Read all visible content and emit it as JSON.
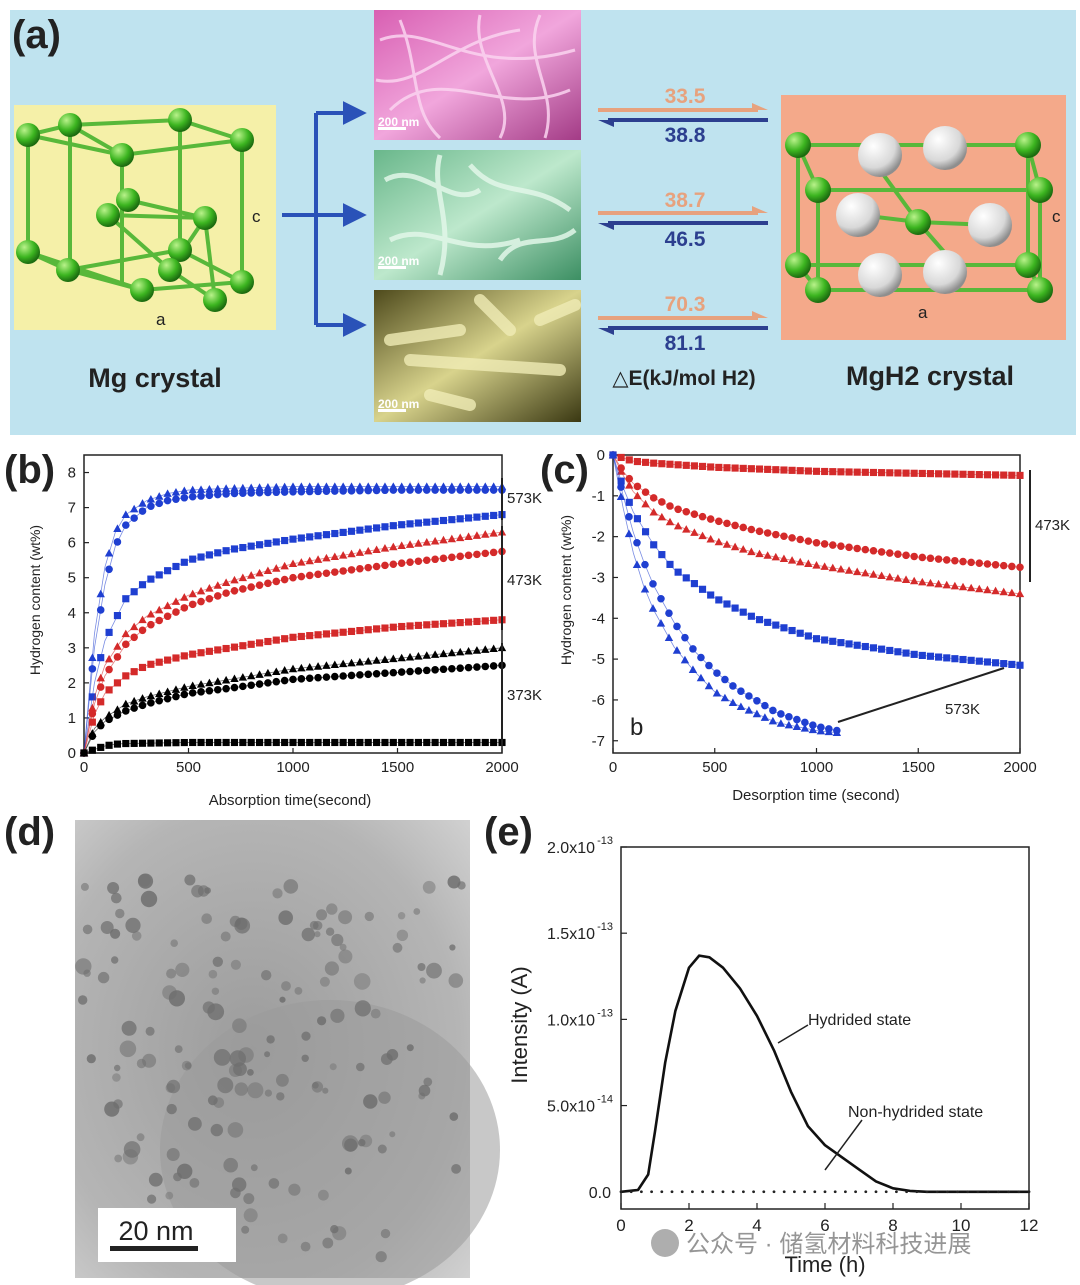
{
  "panel_a": {
    "label": "(a)",
    "mg_caption": "Mg crystal",
    "mgh2_caption": "MgH2 crystal",
    "axis_c": "c",
    "axis_a": "a",
    "scale_bar": "200 nm",
    "energy_unit_label": "△E(kJ/mol H2)",
    "energy_pairs": [
      {
        "forward": "33.5",
        "backward": "38.8"
      },
      {
        "forward": "38.7",
        "backward": "46.5"
      },
      {
        "forward": "70.3",
        "backward": "81.1"
      }
    ],
    "colors": {
      "background": "#bfe3ef",
      "mg_box": "#f5f0a8",
      "mgh2_box": "#f4a98a",
      "forward": "#e7a27e",
      "backward": "#2c3f8f",
      "arrow": "#2a52b8"
    }
  },
  "panel_d": {
    "label": "(d)",
    "scale_bar": "20 nm"
  },
  "watermark": "公众号 · 储氢材料科技进展",
  "chart_data": [
    {
      "id": "b",
      "label": "(b)",
      "type": "scatter",
      "xlabel": "Absorption time(second)",
      "ylabel": "Hydrogen content (wt%)",
      "xlim": [
        0,
        2000
      ],
      "ylim": [
        0,
        8.5
      ],
      "xticks": [
        0,
        500,
        1000,
        1500,
        2000
      ],
      "yticks": [
        0,
        1,
        2,
        3,
        4,
        5,
        6,
        7,
        8
      ],
      "temperature_labels": [
        "573K",
        "473K",
        "373K"
      ],
      "series": [
        {
          "color": "#1f3fd1",
          "marker": "triangle",
          "x": [
            0,
            50,
            100,
            150,
            200,
            300,
            400,
            500,
            700,
            1000,
            1500,
            2000
          ],
          "y": [
            0,
            3.4,
            5.3,
            6.3,
            6.8,
            7.2,
            7.4,
            7.5,
            7.55,
            7.6,
            7.6,
            7.6
          ]
        },
        {
          "color": "#1f3fd1",
          "marker": "circle",
          "x": [
            0,
            50,
            100,
            150,
            200,
            300,
            400,
            500,
            700,
            1000,
            1500,
            2000
          ],
          "y": [
            0,
            3.0,
            4.8,
            5.9,
            6.5,
            7.0,
            7.2,
            7.3,
            7.4,
            7.45,
            7.5,
            7.5
          ]
        },
        {
          "color": "#1f3fd1",
          "marker": "square",
          "x": [
            0,
            50,
            100,
            200,
            300,
            500,
            700,
            1000,
            1500,
            2000
          ],
          "y": [
            0,
            2.0,
            3.2,
            4.4,
            4.9,
            5.5,
            5.8,
            6.1,
            6.5,
            6.8
          ]
        },
        {
          "color": "#d42a2a",
          "marker": "triangle",
          "x": [
            0,
            50,
            100,
            200,
            300,
            500,
            700,
            1000,
            1500,
            2000
          ],
          "y": [
            0,
            1.6,
            2.5,
            3.4,
            3.9,
            4.5,
            4.9,
            5.4,
            5.9,
            6.3
          ]
        },
        {
          "color": "#d42a2a",
          "marker": "circle",
          "x": [
            0,
            50,
            100,
            200,
            300,
            500,
            700,
            1000,
            1500,
            2000
          ],
          "y": [
            0,
            1.4,
            2.2,
            3.1,
            3.6,
            4.2,
            4.6,
            5.0,
            5.4,
            5.75
          ]
        },
        {
          "color": "#d42a2a",
          "marker": "square",
          "x": [
            0,
            50,
            100,
            200,
            300,
            500,
            700,
            1000,
            1500,
            2000
          ],
          "y": [
            0,
            1.1,
            1.7,
            2.2,
            2.5,
            2.8,
            3.0,
            3.3,
            3.6,
            3.8
          ]
        },
        {
          "color": "#000000",
          "marker": "triangle",
          "x": [
            0,
            50,
            100,
            200,
            300,
            500,
            700,
            1000,
            1500,
            2000
          ],
          "y": [
            0,
            0.7,
            1.0,
            1.4,
            1.6,
            1.9,
            2.1,
            2.4,
            2.7,
            3.0
          ]
        },
        {
          "color": "#000000",
          "marker": "circle",
          "x": [
            0,
            50,
            100,
            200,
            300,
            500,
            700,
            1000,
            1500,
            2000
          ],
          "y": [
            0,
            0.6,
            0.9,
            1.2,
            1.4,
            1.7,
            1.85,
            2.1,
            2.3,
            2.5
          ]
        },
        {
          "color": "#000000",
          "marker": "square",
          "x": [
            0,
            50,
            100,
            150,
            200,
            500,
            1000,
            1500,
            2000
          ],
          "y": [
            0,
            0.1,
            0.2,
            0.25,
            0.27,
            0.3,
            0.3,
            0.3,
            0.3
          ]
        }
      ]
    },
    {
      "id": "c",
      "label": "(c)",
      "type": "scatter",
      "xlabel": "Desorption time (second)",
      "ylabel": "Hydrogen content (wt%)",
      "xlim": [
        0,
        2000
      ],
      "ylim": [
        -7.3,
        0
      ],
      "xticks": [
        0,
        500,
        1000,
        1500,
        2000
      ],
      "yticks": [
        0,
        -1,
        -2,
        -3,
        -4,
        -5,
        -6,
        -7
      ],
      "temperature_labels": [
        "473K",
        "573K"
      ],
      "inner_label": "b",
      "series": [
        {
          "color": "#d42a2a",
          "marker": "square",
          "x": [
            0,
            100,
            200,
            500,
            1000,
            1500,
            2000
          ],
          "y": [
            0,
            -0.15,
            -0.2,
            -0.3,
            -0.4,
            -0.45,
            -0.5
          ]
        },
        {
          "color": "#d42a2a",
          "marker": "circle",
          "x": [
            0,
            50,
            100,
            200,
            300,
            500,
            700,
            1000,
            1500,
            2000
          ],
          "y": [
            0,
            -0.4,
            -0.7,
            -1.05,
            -1.3,
            -1.6,
            -1.85,
            -2.15,
            -2.5,
            -2.75
          ]
        },
        {
          "color": "#d42a2a",
          "marker": "triangle",
          "x": [
            0,
            50,
            100,
            200,
            300,
            500,
            700,
            1000,
            1500,
            2000
          ],
          "y": [
            0,
            -0.5,
            -0.9,
            -1.4,
            -1.7,
            -2.1,
            -2.4,
            -2.7,
            -3.1,
            -3.4
          ]
        },
        {
          "color": "#1f3fd1",
          "marker": "square",
          "x": [
            0,
            50,
            100,
            200,
            300,
            500,
            700,
            1000,
            1500,
            2000
          ],
          "y": [
            0,
            -0.8,
            -1.4,
            -2.2,
            -2.8,
            -3.5,
            -4.0,
            -4.5,
            -4.9,
            -5.15
          ]
        },
        {
          "color": "#1f3fd1",
          "marker": "circle",
          "x": [
            0,
            50,
            100,
            150,
            200,
            300,
            400,
            500,
            600,
            800,
            1000,
            1100
          ],
          "y": [
            0,
            -1.0,
            -1.9,
            -2.6,
            -3.2,
            -4.1,
            -4.8,
            -5.3,
            -5.7,
            -6.3,
            -6.65,
            -6.75
          ]
        },
        {
          "color": "#1f3fd1",
          "marker": "triangle",
          "x": [
            0,
            50,
            100,
            150,
            200,
            300,
            400,
            500,
            600,
            800,
            1000,
            1100
          ],
          "y": [
            0,
            -1.3,
            -2.4,
            -3.2,
            -3.8,
            -4.7,
            -5.3,
            -5.8,
            -6.1,
            -6.55,
            -6.75,
            -6.8
          ]
        }
      ]
    },
    {
      "id": "e",
      "label": "(e)",
      "type": "line",
      "xlabel": "Time (h)",
      "ylabel": "Intensity (A)",
      "xlim": [
        0,
        12
      ],
      "ylim": [
        -1e-14,
        2e-13
      ],
      "xticks": [
        0,
        2,
        4,
        6,
        8,
        10,
        12
      ],
      "ytick_labels": [
        "0.0",
        "5.0x10",
        "1.0x10",
        "1.5x10",
        "2.0x10"
      ],
      "ytick_exponents": [
        "",
        "-14",
        "-13",
        "-13",
        "-13"
      ],
      "ytick_values": [
        0,
        5e-14,
        1e-13,
        1.5e-13,
        2e-13
      ],
      "annotations": [
        "Hydrided state",
        "Non-hydrided state"
      ],
      "series": [
        {
          "style": "solid",
          "x": [
            0,
            0.5,
            0.8,
            1.0,
            1.3,
            1.6,
            2.0,
            2.3,
            2.6,
            3.0,
            3.5,
            4.0,
            4.5,
            5.0,
            5.5,
            6.0,
            6.5,
            7.0,
            7.5,
            8.0,
            8.5,
            9,
            10,
            11,
            12
          ],
          "y": [
            0,
            1e-15,
            1e-14,
            3.5e-14,
            7.5e-14,
            1.05e-13,
            1.3e-13,
            1.37e-13,
            1.36e-13,
            1.3e-13,
            1.18e-13,
            1.02e-13,
            8.2e-14,
            5.8e-14,
            3.8e-14,
            2.7e-14,
            2e-14,
            1.3e-14,
            6e-15,
            2e-15,
            5e-16,
            0,
            0,
            0,
            0
          ]
        },
        {
          "style": "dotted",
          "x": [
            0,
            2,
            4,
            6,
            8,
            10,
            12
          ],
          "y": [
            0,
            0,
            0,
            0,
            0,
            0,
            0
          ]
        }
      ]
    }
  ]
}
